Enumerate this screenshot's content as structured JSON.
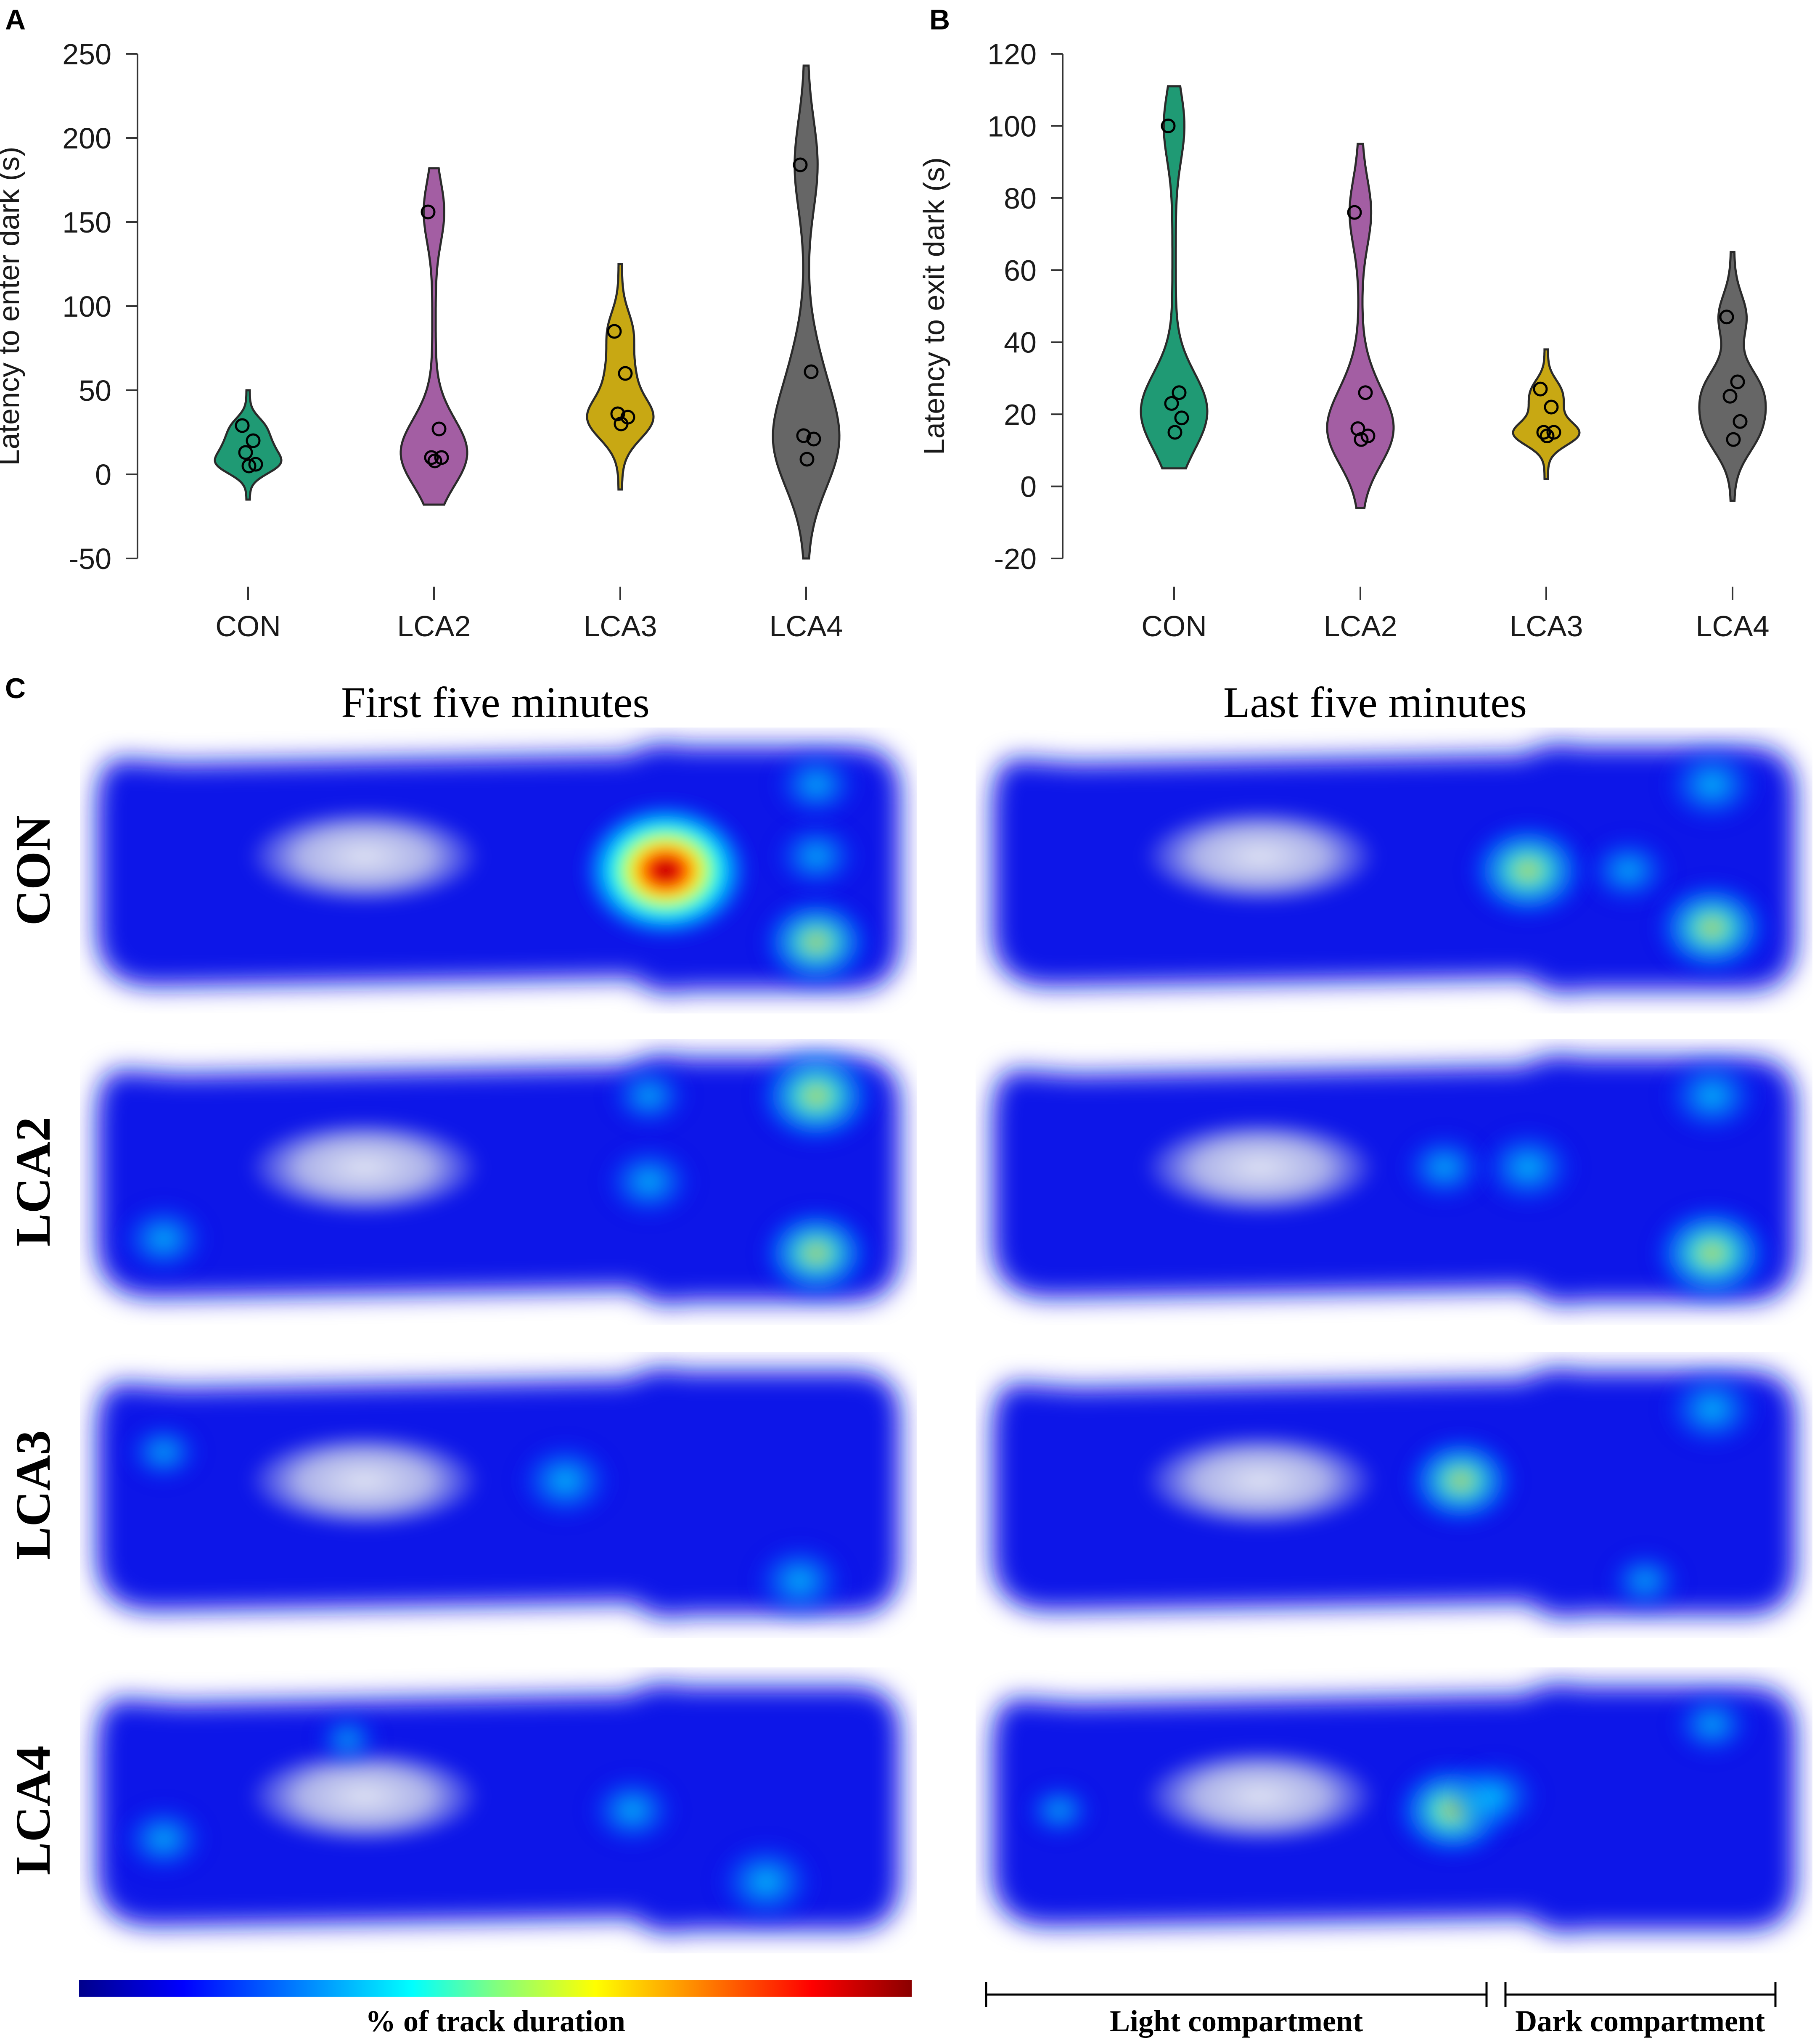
{
  "panels": {
    "a_letter": "A",
    "b_letter": "B",
    "c_letter": "C"
  },
  "colors": {
    "CON": "#1f9a74",
    "LCA2": "#a35ea3",
    "LCA3": "#c8a813",
    "LCA4": "#666666"
  },
  "chart_data": [
    {
      "type": "violin",
      "panel": "A",
      "title": "",
      "xlabel": "",
      "ylabel": "Latency to enter dark (s)",
      "categories": [
        "CON",
        "LCA2",
        "LCA3",
        "LCA4"
      ],
      "ylim": [
        -50,
        250
      ],
      "yticks": [
        -50,
        0,
        50,
        100,
        150,
        200,
        250
      ],
      "series": [
        {
          "category": "CON",
          "points": [
            29,
            20,
            13,
            6,
            5
          ],
          "range": [
            -15,
            50
          ]
        },
        {
          "category": "LCA2",
          "points": [
            156,
            27,
            10,
            10,
            8
          ],
          "range": [
            -18,
            182
          ]
        },
        {
          "category": "LCA3",
          "points": [
            85,
            60,
            36,
            34,
            30
          ],
          "range": [
            -9,
            125
          ]
        },
        {
          "category": "LCA4",
          "points": [
            184,
            61,
            23,
            21,
            9
          ],
          "range": [
            -50,
            243
          ]
        }
      ]
    },
    {
      "type": "violin",
      "panel": "B",
      "title": "",
      "xlabel": "",
      "ylabel": "Latency to exit dark (s)",
      "categories": [
        "CON",
        "LCA2",
        "LCA3",
        "LCA4"
      ],
      "ylim": [
        -20,
        120
      ],
      "yticks": [
        -20,
        0,
        20,
        40,
        60,
        80,
        100,
        120
      ],
      "series": [
        {
          "category": "CON",
          "points": [
            100,
            26,
            23,
            19,
            15
          ],
          "range": [
            5,
            111
          ]
        },
        {
          "category": "LCA2",
          "points": [
            76,
            26,
            16,
            14,
            13
          ],
          "range": [
            -6,
            95
          ]
        },
        {
          "category": "LCA3",
          "points": [
            27,
            22,
            15,
            15,
            14
          ],
          "range": [
            2,
            38
          ]
        },
        {
          "category": "LCA4",
          "points": [
            47,
            29,
            25,
            18,
            13
          ],
          "range": [
            -4,
            65
          ]
        }
      ]
    },
    {
      "type": "heatmap",
      "panel": "C",
      "column_titles": [
        "First five minutes",
        "Last five minutes"
      ],
      "row_labels": [
        "CON",
        "LCA2",
        "LCA3",
        "LCA4"
      ],
      "colorbar_label": "% of track duration",
      "colorbar_stops": [
        "#00008b",
        "#0000ff",
        "#00a0ff",
        "#00ffff",
        "#80ff80",
        "#ffff00",
        "#ff8000",
        "#ff0000",
        "#8b0000"
      ],
      "compartment_labels": [
        "Light compartment",
        "Dark compartment"
      ],
      "hotspots": [
        {
          "row": "CON",
          "col": 0,
          "spots": [
            [
              0.7,
              0.5,
              1.0
            ],
            [
              0.88,
              0.75,
              0.55
            ],
            [
              0.88,
              0.45,
              0.35
            ],
            [
              0.88,
              0.2,
              0.35
            ]
          ]
        },
        {
          "row": "CON",
          "col": 1,
          "spots": [
            [
              0.66,
              0.5,
              0.62
            ],
            [
              0.88,
              0.7,
              0.58
            ],
            [
              0.88,
              0.2,
              0.45
            ],
            [
              0.78,
              0.5,
              0.35
            ]
          ]
        },
        {
          "row": "LCA2",
          "col": 0,
          "spots": [
            [
              0.88,
              0.2,
              0.62
            ],
            [
              0.88,
              0.75,
              0.55
            ],
            [
              0.68,
              0.5,
              0.4
            ],
            [
              0.1,
              0.7,
              0.38
            ],
            [
              0.68,
              0.2,
              0.3
            ]
          ]
        },
        {
          "row": "LCA2",
          "col": 1,
          "spots": [
            [
              0.88,
              0.75,
              0.62
            ],
            [
              0.66,
              0.45,
              0.45
            ],
            [
              0.88,
              0.2,
              0.45
            ],
            [
              0.56,
              0.45,
              0.35
            ]
          ]
        },
        {
          "row": "LCA3",
          "col": 0,
          "spots": [
            [
              0.58,
              0.45,
              0.45
            ],
            [
              0.86,
              0.8,
              0.42
            ],
            [
              0.1,
              0.35,
              0.25
            ]
          ]
        },
        {
          "row": "LCA3",
          "col": 1,
          "spots": [
            [
              0.58,
              0.45,
              0.55
            ],
            [
              0.88,
              0.2,
              0.45
            ],
            [
              0.8,
              0.8,
              0.25
            ]
          ]
        },
        {
          "row": "LCA4",
          "col": 0,
          "spots": [
            [
              0.82,
              0.75,
              0.48
            ],
            [
              0.1,
              0.6,
              0.35
            ],
            [
              0.66,
              0.5,
              0.38
            ],
            [
              0.32,
              0.25,
              0.15
            ]
          ]
        },
        {
          "row": "LCA4",
          "col": 1,
          "spots": [
            [
              0.57,
              0.5,
              0.6
            ],
            [
              0.62,
              0.45,
              0.4
            ],
            [
              0.88,
              0.2,
              0.3
            ],
            [
              0.1,
              0.5,
              0.2
            ]
          ]
        }
      ]
    }
  ]
}
